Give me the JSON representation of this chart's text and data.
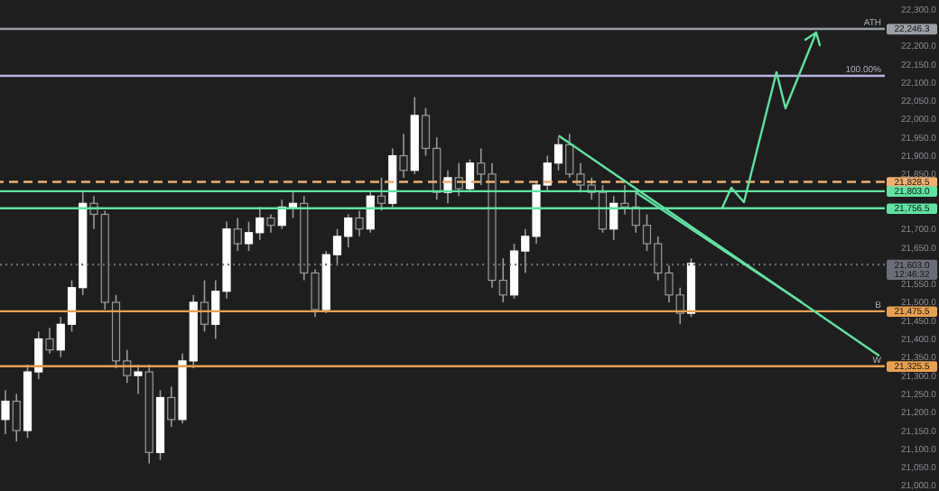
{
  "chart_data": {
    "type": "candlestick",
    "categories": [
      null,
      null,
      null,
      null,
      null,
      null,
      null,
      null,
      null,
      null,
      null,
      null,
      null,
      null,
      null,
      null,
      null,
      null,
      null,
      null,
      null,
      null,
      null,
      null,
      null,
      null,
      null,
      null,
      null,
      null,
      null,
      null,
      null,
      null,
      null,
      null,
      null,
      null,
      null,
      null,
      null,
      null,
      null,
      null,
      null,
      null,
      null,
      null,
      null,
      null,
      null,
      null,
      null,
      null,
      null,
      null,
      null,
      null,
      null,
      null,
      null,
      null,
      null,
      null,
      null,
      null,
      null,
      null,
      null,
      null,
      null,
      null,
      null,
      null,
      null,
      null,
      null,
      null,
      null,
      null
    ],
    "ohlc": [
      [
        21180,
        21260,
        21140,
        21230
      ],
      [
        21230,
        21250,
        21120,
        21150
      ],
      [
        21150,
        21330,
        21130,
        21310
      ],
      [
        21310,
        21420,
        21290,
        21400
      ],
      [
        21400,
        21430,
        21360,
        21370
      ],
      [
        21370,
        21460,
        21350,
        21440
      ],
      [
        21440,
        21560,
        21420,
        21540
      ],
      [
        21540,
        21800,
        21520,
        21770
      ],
      [
        21770,
        21790,
        21700,
        21740
      ],
      [
        21740,
        21750,
        21480,
        21500
      ],
      [
        21500,
        21520,
        21320,
        21340
      ],
      [
        21340,
        21370,
        21280,
        21300
      ],
      [
        21300,
        21330,
        21250,
        21310
      ],
      [
        21310,
        21330,
        21060,
        21090
      ],
      [
        21090,
        21260,
        21070,
        21240
      ],
      [
        21240,
        21270,
        21160,
        21180
      ],
      [
        21180,
        21360,
        21170,
        21340
      ],
      [
        21340,
        21520,
        21320,
        21500
      ],
      [
        21500,
        21560,
        21420,
        21440
      ],
      [
        21440,
        21560,
        21400,
        21530
      ],
      [
        21530,
        21720,
        21510,
        21700
      ],
      [
        21700,
        21730,
        21640,
        21660
      ],
      [
        21660,
        21720,
        21640,
        21690
      ],
      [
        21690,
        21760,
        21670,
        21730
      ],
      [
        21730,
        21740,
        21690,
        21710
      ],
      [
        21710,
        21780,
        21700,
        21760
      ],
      [
        21760,
        21800,
        21730,
        21770
      ],
      [
        21770,
        21790,
        21560,
        21580
      ],
      [
        21580,
        21590,
        21460,
        21480
      ],
      [
        21480,
        21640,
        21470,
        21630
      ],
      [
        21630,
        21700,
        21600,
        21680
      ],
      [
        21680,
        21740,
        21650,
        21730
      ],
      [
        21730,
        21750,
        21680,
        21700
      ],
      [
        21700,
        21800,
        21690,
        21790
      ],
      [
        21790,
        21840,
        21750,
        21770
      ],
      [
        21770,
        21920,
        21760,
        21900
      ],
      [
        21900,
        21960,
        21840,
        21860
      ],
      [
        21860,
        22060,
        21850,
        22010
      ],
      [
        22010,
        22030,
        21900,
        21920
      ],
      [
        21920,
        21950,
        21780,
        21800
      ],
      [
        21800,
        21860,
        21770,
        21840
      ],
      [
        21840,
        21880,
        21790,
        21810
      ],
      [
        21810,
        21890,
        21800,
        21880
      ],
      [
        21880,
        21920,
        21820,
        21850
      ],
      [
        21850,
        21880,
        21540,
        21560
      ],
      [
        21560,
        21620,
        21500,
        21520
      ],
      [
        21520,
        21660,
        21510,
        21640
      ],
      [
        21640,
        21700,
        21580,
        21680
      ],
      [
        21680,
        21830,
        21660,
        21820
      ],
      [
        21820,
        21900,
        21800,
        21880
      ],
      [
        21880,
        21950,
        21860,
        21930
      ],
      [
        21930,
        21960,
        21840,
        21850
      ],
      [
        21850,
        21880,
        21800,
        21820
      ],
      [
        21820,
        21840,
        21780,
        21800
      ],
      [
        21800,
        21820,
        21690,
        21700
      ],
      [
        21700,
        21790,
        21670,
        21770
      ],
      [
        21770,
        21820,
        21740,
        21760
      ],
      [
        21760,
        21800,
        21690,
        21710
      ],
      [
        21710,
        21740,
        21640,
        21660
      ],
      [
        21660,
        21680,
        21560,
        21580
      ],
      [
        21580,
        21600,
        21500,
        21520
      ],
      [
        21520,
        21540,
        21440,
        21470
      ],
      [
        21470,
        21620,
        21460,
        21606.2
      ],
      null,
      null,
      null,
      null,
      null,
      null,
      null,
      null,
      null,
      null,
      null,
      null,
      null,
      null,
      null,
      null,
      null
    ],
    "series": [
      {
        "type": "line",
        "color": "#5fe3a1",
        "values": [
          null,
          null,
          null,
          null,
          null,
          null,
          null,
          null,
          null,
          null,
          null,
          null,
          null,
          null,
          null,
          null,
          null,
          null,
          null,
          null,
          null,
          null,
          null,
          null,
          null,
          null,
          null,
          null,
          null,
          null,
          null,
          null,
          null,
          null,
          null,
          null,
          null,
          null,
          null,
          null,
          null,
          null,
          null,
          null,
          null,
          null,
          null,
          null,
          null,
          null,
          21955,
          null,
          null,
          null,
          null,
          null,
          null,
          null,
          null,
          null,
          null,
          null,
          null,
          null,
          null,
          null,
          null,
          null,
          null,
          null,
          null,
          null,
          null,
          null,
          null,
          null,
          null,
          null,
          null,
          21354
        ]
      },
      {
        "type": "line",
        "color": "#5fe3a1",
        "values": [
          null,
          null,
          null,
          null,
          null,
          null,
          null,
          null,
          null,
          null,
          null,
          null,
          null,
          null,
          null,
          null,
          null,
          null,
          null,
          null,
          null,
          null,
          null,
          null,
          null,
          null,
          null,
          null,
          null,
          null,
          null,
          null,
          null,
          null,
          null,
          null,
          null,
          null,
          null,
          null,
          null,
          null,
          null,
          null,
          null,
          null,
          null,
          null,
          null,
          null,
          null,
          null,
          null,
          null,
          null,
          null,
          null,
          21800,
          null,
          null,
          null,
          null,
          null,
          null,
          null,
          null,
          null,
          null,
          null,
          null,
          null,
          null,
          21500,
          null,
          null,
          null,
          null,
          null,
          null,
          null
        ]
      }
    ],
    "ylim": [
      20985,
      22325
    ],
    "yticks": [
      {
        "value": 21000,
        "label": "21,000.0"
      },
      {
        "value": 21050,
        "label": "21,050.0"
      },
      {
        "value": 21100,
        "label": "21,100.0"
      },
      {
        "value": 21150,
        "label": "21,150.0"
      },
      {
        "value": 21200,
        "label": "21,200.0"
      },
      {
        "value": 21250,
        "label": "21,250.0"
      },
      {
        "value": 21300,
        "label": "21,300.0"
      },
      {
        "value": 21350,
        "label": "21,350.0"
      },
      {
        "value": 21400,
        "label": "21,400.0"
      },
      {
        "value": 21450,
        "label": "21,450.0"
      },
      {
        "value": 21500,
        "label": "21,500.0"
      },
      {
        "value": 21550,
        "label": "21,550.0"
      },
      {
        "value": 21650,
        "label": "21,650.0"
      },
      {
        "value": 21700,
        "label": "21,700.0"
      },
      {
        "value": 21850,
        "label": "21,850.0"
      },
      {
        "value": 21900,
        "label": "21,900.0"
      },
      {
        "value": 21950,
        "label": "21,950.0"
      },
      {
        "value": 22000,
        "label": "22,000.0"
      },
      {
        "value": 22050,
        "label": "22,050.0"
      },
      {
        "value": 22100,
        "label": "22,100.0"
      },
      {
        "value": 22150,
        "label": "22,150.0"
      },
      {
        "value": 22200,
        "label": "22,200.0"
      },
      {
        "value": 22300,
        "label": "22,300.0"
      }
    ],
    "ref_lines": [
      {
        "axis": "y",
        "value": 22246.3,
        "label": "22,246.3",
        "color": "#9aa0a6"
      },
      {
        "axis": "y",
        "value": 22118,
        "color": "#b7b3e6"
      },
      {
        "axis": "y",
        "value": 21828.5,
        "label": "21,828.5",
        "color": "#f0b070",
        "line_style": "dashed"
      },
      {
        "axis": "y",
        "value": 21803,
        "label": "21,803.0",
        "color": "#5fe3a1"
      },
      {
        "axis": "y",
        "value": 21756.5,
        "label": "21,756.5",
        "color": "#5fe3a1"
      },
      {
        "axis": "y",
        "value": 21603,
        "label": "21,603.0\n12:46:32",
        "color": "#6b6e78",
        "line_style": "dotted"
      },
      {
        "axis": "y",
        "value": 21475.5,
        "label": "21,475.5",
        "color": "#e8a050"
      },
      {
        "axis": "y",
        "value": 21325.5,
        "label": "21,325.5",
        "color": "#e8a050"
      }
    ],
    "annotations": [
      {
        "text": "ATH",
        "y": 22246.3
      },
      {
        "text": "100.00%",
        "y": 22118
      },
      {
        "text": "B",
        "y": 21475.5
      },
      {
        "text": "W",
        "y": 21325.5
      }
    ],
    "tick_labels": "y"
  }
}
